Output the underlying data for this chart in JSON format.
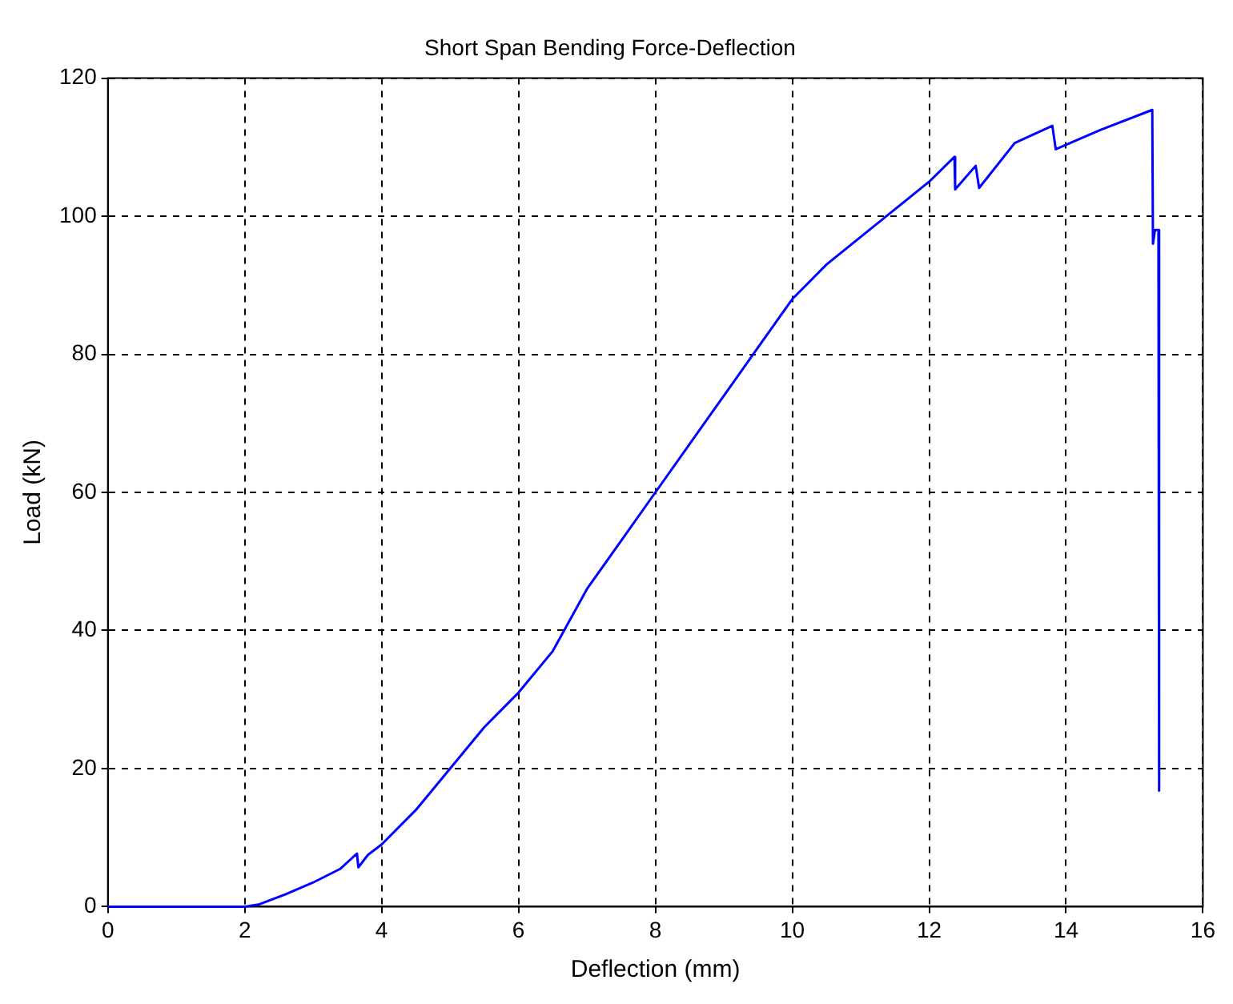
{
  "chart_data": {
    "type": "line",
    "title": "Short Span Bending Force-Deflection",
    "xlabel": "Deflection (mm)",
    "ylabel": "Load (kN)",
    "xlim": [
      0,
      16
    ],
    "xticks": [
      0,
      2,
      4,
      6,
      8,
      10,
      12,
      14,
      16
    ],
    "ylim": [
      0,
      120
    ],
    "yticks": [
      0,
      20,
      40,
      60,
      80,
      100,
      120
    ],
    "grid": true,
    "marker": "none",
    "series": [
      {
        "color": "#0000ff",
        "x": [
          0,
          2.0,
          2.2,
          2.6,
          3.0,
          3.4,
          3.64,
          3.66,
          3.8,
          4.0,
          4.5,
          5.0,
          5.5,
          6.0,
          6.5,
          7.0,
          7.5,
          8.0,
          8.5,
          9.0,
          9.5,
          10.0,
          10.5,
          11.0,
          11.5,
          12.0,
          12.37,
          12.38,
          12.68,
          12.73,
          13.25,
          13.8,
          13.85,
          14.5,
          15.26,
          15.27,
          15.3,
          15.35,
          15.36
        ],
        "values": [
          0,
          0,
          0.3,
          1.8,
          3.5,
          5.5,
          7.7,
          5.7,
          7.5,
          9,
          14,
          20,
          26,
          31,
          37,
          46,
          53,
          60,
          67,
          74,
          81,
          88,
          93,
          97,
          101,
          105,
          108.6,
          103.9,
          107.3,
          104.1,
          110.6,
          113.1,
          109.7,
          112.5,
          115.4,
          96,
          98,
          98,
          16.8
        ]
      }
    ]
  }
}
